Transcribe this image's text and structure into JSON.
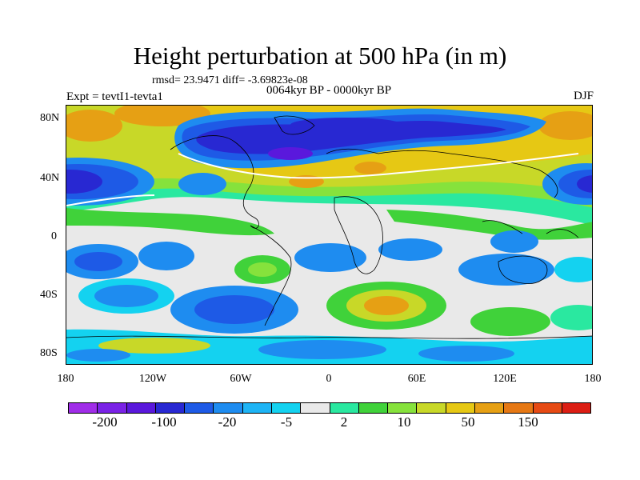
{
  "title": "Height perturbation at 500 hPa (in m)",
  "stats": "rmsd= 23.9471 diff= -3.69823e-08",
  "subtitle": "0064kyr BP - 0000kyr BP",
  "experiment": "Expt = tevtI1-tevta1",
  "season": "DJF",
  "latitude_ticks": [
    "80N",
    "40N",
    "0",
    "40S",
    "80S"
  ],
  "longitude_ticks": [
    "180",
    "120W",
    "60W",
    "0",
    "60E",
    "120E",
    "180"
  ],
  "colorbar": {
    "colors": [
      "#a02de8",
      "#7a22e6",
      "#5a18dc",
      "#2828d2",
      "#1e5ae6",
      "#1e8cf0",
      "#1eb4f5",
      "#14d2f0",
      "#e9e9e9",
      "#2ae8a0",
      "#40d23a",
      "#86e23c",
      "#c8d828",
      "#e6c814",
      "#e6a014",
      "#e67814",
      "#e64a14",
      "#dc1e14"
    ],
    "labels": [
      "-200",
      "-100",
      "-20",
      "-5",
      "2",
      "10",
      "50",
      "150"
    ]
  },
  "colors": {
    "strong_negative": "#2828d2",
    "negative": "#1e5ae6",
    "weak_negative": "#1e8cf0",
    "slight_negative": "#14d2f0",
    "neutral": "#e9e9e9",
    "slight_positive": "#2ae8a0",
    "weak_positive": "#40d23a",
    "positive": "#c8d828",
    "strong_positive": "#e6a014"
  }
}
